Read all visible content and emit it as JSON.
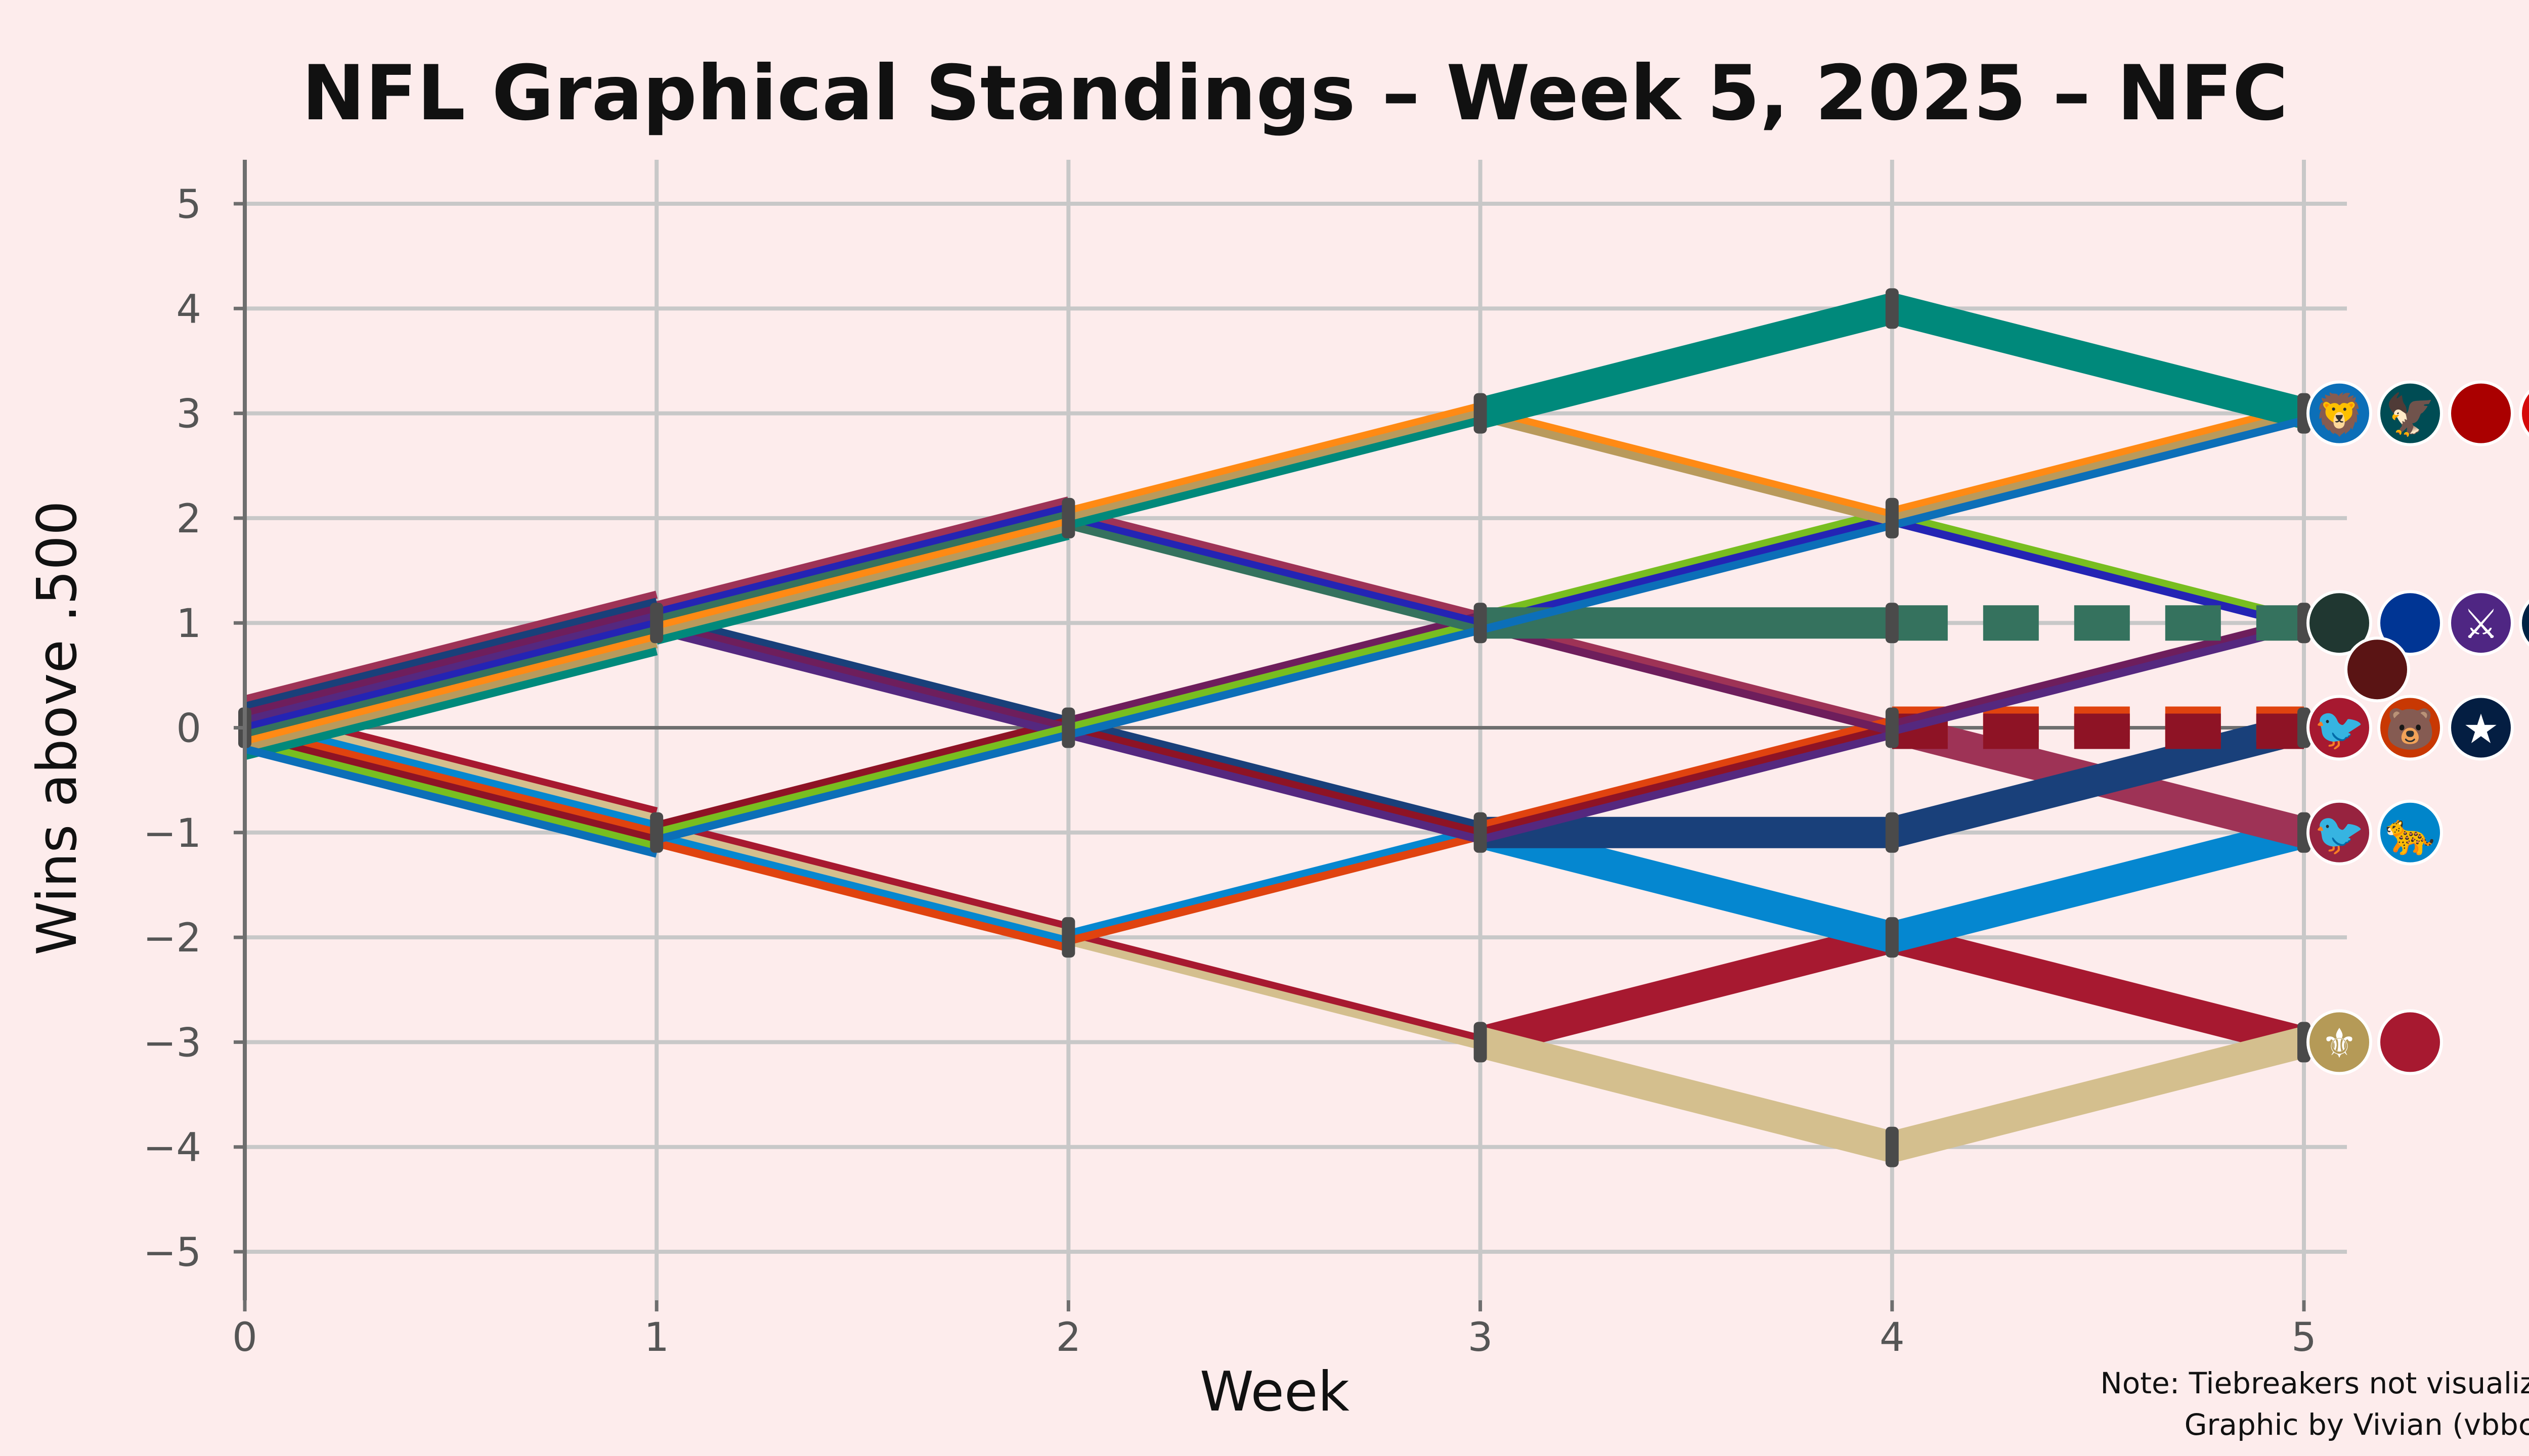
{
  "chart_data": {
    "type": "line",
    "title": "NFL Graphical Standings – Week 5, 2025 – NFC",
    "xlabel": "Week",
    "ylabel": "Wins above .500",
    "x": [
      0,
      1,
      2,
      3,
      4,
      5
    ],
    "xlim": [
      0,
      5
    ],
    "ylim": [
      -5,
      5
    ],
    "x_ticks": [
      "0",
      "1",
      "2",
      "3",
      "4",
      "5"
    ],
    "y_ticks": [
      "5",
      "4",
      "3",
      "2",
      "1",
      "0",
      "−1",
      "−2",
      "−3",
      "−4",
      "−5"
    ],
    "grid": true,
    "series": [
      {
        "name": "DET",
        "color": "#0C6FB8",
        "values": [
          0,
          -1,
          0,
          1,
          2,
          3
        ]
      },
      {
        "name": "PHI",
        "color": "#00897B",
        "values": [
          0,
          1,
          2,
          3,
          4,
          3
        ]
      },
      {
        "name": "SF",
        "color": "#B99A5C",
        "values": [
          0,
          1,
          2,
          3,
          2,
          3
        ]
      },
      {
        "name": "TB",
        "color": "#FF8A14",
        "values": [
          0,
          1,
          2,
          3,
          2,
          3
        ]
      },
      {
        "name": "GB",
        "color": "#35725E",
        "values": [
          0,
          1,
          2,
          1,
          1,
          1
        ],
        "dashed_last": true
      },
      {
        "name": "LAR",
        "color": "#2424B4",
        "values": [
          0,
          1,
          2,
          1,
          2,
          1
        ]
      },
      {
        "name": "SEA",
        "color": "#78BE20",
        "values": [
          0,
          -1,
          0,
          1,
          2,
          1
        ]
      },
      {
        "name": "MIN",
        "color": "#55287F",
        "values": [
          0,
          1,
          0,
          -1,
          0,
          1
        ]
      },
      {
        "name": "WAS",
        "color": "#6E1E5C",
        "values": [
          0,
          1,
          0,
          1,
          0,
          1
        ]
      },
      {
        "name": "ATL",
        "color": "#8E1325",
        "values": [
          0,
          -1,
          0,
          -1,
          0,
          0
        ],
        "dashed_last": true
      },
      {
        "name": "CHI",
        "color": "#E0430F",
        "values": [
          0,
          -1,
          -2,
          -1,
          0,
          0
        ],
        "dashed_last": true
      },
      {
        "name": "DAL",
        "color": "#19407A",
        "values": [
          0,
          1,
          0,
          -1,
          -1,
          0
        ]
      },
      {
        "name": "ARI",
        "color": "#9E3356",
        "values": [
          0,
          1,
          2,
          1,
          0,
          -1
        ]
      },
      {
        "name": "CAR",
        "color": "#0587D0",
        "values": [
          0,
          -1,
          -2,
          -1,
          -2,
          -1
        ]
      },
      {
        "name": "NO",
        "color": "#D4BF8E",
        "values": [
          0,
          -1,
          -2,
          -3,
          -4,
          -3
        ]
      },
      {
        "name": "NYG",
        "color": "#A71930",
        "values": [
          0,
          -1,
          -2,
          -3,
          -2,
          -3
        ]
      }
    ],
    "annotations": [
      "Note: Tiebreakers not visualized",
      "Graphic by Vivian (vbbcla)"
    ]
  },
  "logos": [
    {
      "team": "DET",
      "icon": "lion-logo-icon",
      "row": 3,
      "glyph": "🦁",
      "color": "#0C6FB8"
    },
    {
      "team": "PHI",
      "icon": "eagle-logo-icon",
      "row": 3,
      "glyph": "🦅",
      "color": "#004C54"
    },
    {
      "team": "SF",
      "icon": "niners-logo-icon",
      "row": 3,
      "glyph": "",
      "color": "#AA0000"
    },
    {
      "team": "TB",
      "icon": "pirate-flag-logo-icon",
      "row": 3,
      "glyph": "☠",
      "color": "#D50A0A"
    },
    {
      "team": "GB",
      "icon": "packers-g-logo-icon",
      "row": 1,
      "glyph": "",
      "color": "#203731"
    },
    {
      "team": "LAR",
      "icon": "rams-logo-icon",
      "row": 1,
      "glyph": "",
      "color": "#003594"
    },
    {
      "team": "MIN",
      "icon": "viking-logo-icon",
      "row": 1,
      "glyph": "⚔",
      "color": "#4F2683"
    },
    {
      "team": "SEA",
      "icon": "seahawk-logo-icon",
      "row": 1,
      "glyph": "🦅",
      "color": "#002244"
    },
    {
      "team": "WAS",
      "icon": "commanders-w-logo-icon",
      "row": 1,
      "glyph": "",
      "color": "#5A1414"
    },
    {
      "team": "ATL",
      "icon": "falcon-logo-icon",
      "row": 0,
      "glyph": "🐦",
      "color": "#A71930"
    },
    {
      "team": "CHI",
      "icon": "bear-logo-icon",
      "row": 0,
      "glyph": "🐻",
      "color": "#C83803"
    },
    {
      "team": "DAL",
      "icon": "star-logo-icon",
      "row": 0,
      "glyph": "★",
      "color": "#041E42"
    },
    {
      "team": "ARI",
      "icon": "cardinal-logo-icon",
      "row": -1,
      "glyph": "🐦",
      "color": "#97233F"
    },
    {
      "team": "CAR",
      "icon": "panther-logo-icon",
      "row": -1,
      "glyph": "🐆",
      "color": "#0085CA"
    },
    {
      "team": "NO",
      "icon": "fleur-de-lis-logo-icon",
      "row": -3,
      "glyph": "⚜",
      "color": "#B59A57"
    },
    {
      "team": "NYG",
      "icon": "ny-logo-icon",
      "row": -3,
      "glyph": "",
      "color": "#A71930"
    }
  ]
}
